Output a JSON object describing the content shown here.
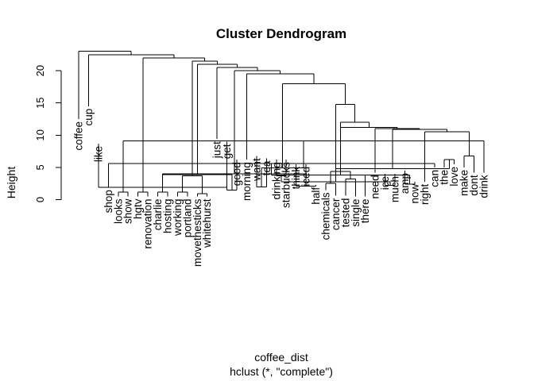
{
  "chart_data": {
    "type": "dendrogram",
    "title": "Cluster Dendrogram",
    "ylabel": "Height",
    "xlabel": "coffee_dist",
    "sub": "hclust (*, \"complete\")",
    "ylim": [
      0,
      20
    ],
    "yticks": [
      0,
      5,
      10,
      15,
      20
    ],
    "leaves": [
      {
        "label": "coffee",
        "h": 12.5
      },
      {
        "label": "cup",
        "h": 14.5
      },
      {
        "label": "like",
        "h": 8.7
      },
      {
        "label": "shop",
        "h": 1.9
      },
      {
        "label": "looks",
        "h": 0.5
      },
      {
        "label": "show",
        "h": 0.5
      },
      {
        "label": "hgtv",
        "h": 0.5
      },
      {
        "label": "renovation",
        "h": 0.5
      },
      {
        "label": "charlie",
        "h": 0.5
      },
      {
        "label": "hosting",
        "h": 0.5
      },
      {
        "label": "working",
        "h": 0.5
      },
      {
        "label": "portland",
        "h": 0.5
      },
      {
        "label": "movethesticks",
        "h": 0.5
      },
      {
        "label": "whitehurst",
        "h": 0.5
      },
      {
        "label": "just",
        "h": 9.4
      },
      {
        "label": "get",
        "h": 9.0
      },
      {
        "label": "good",
        "h": 6.2
      },
      {
        "label": "morning",
        "h": 6.2
      },
      {
        "label": "want",
        "h": 6.8
      },
      {
        "label": "tea",
        "h": 6.4
      },
      {
        "label": "drinking",
        "h": 6.2
      },
      {
        "label": "starbucks",
        "h": 6.2
      },
      {
        "label": "think",
        "h": 5.5
      },
      {
        "label": "iced",
        "h": 5.5
      },
      {
        "label": "half",
        "h": 2.3
      },
      {
        "label": "chemicals",
        "h": 1.5
      },
      {
        "label": "cancer",
        "h": 0.6
      },
      {
        "label": "tested",
        "h": 0.6
      },
      {
        "label": "single",
        "h": 0.5
      },
      {
        "label": "there",
        "h": 0.5
      },
      {
        "label": "need",
        "h": 4.2
      },
      {
        "label": "ice",
        "h": 4.0
      },
      {
        "label": "much",
        "h": 4.0
      },
      {
        "label": "amp",
        "h": 4.5
      },
      {
        "label": "now",
        "h": 2.8
      },
      {
        "label": "right",
        "h": 2.8
      },
      {
        "label": "can",
        "h": 5.0
      },
      {
        "label": "the",
        "h": 5.0
      },
      {
        "label": "love",
        "h": 5.5
      },
      {
        "label": "make",
        "h": 5.0
      },
      {
        "label": "dont",
        "h": 4.2
      },
      {
        "label": "drink",
        "h": 4.2
      }
    ],
    "merges": [
      {
        "l": 4,
        "r": 5,
        "h": 1.2
      },
      {
        "l": 6,
        "r": 7,
        "h": 1.2
      },
      {
        "l": 8,
        "r": 9,
        "h": 1.2
      },
      {
        "l": 10,
        "r": 11,
        "h": 1.2
      },
      {
        "l": 12,
        "r": 13,
        "h": 0.9
      },
      {
        "l": 2,
        "r": 15,
        "h": 1.9
      },
      {
        "l": 15,
        "r": 16,
        "h": 1.5
      },
      {
        "l": 22,
        "r": 24,
        "h": 2.1
      },
      {
        "l": 25,
        "r": 26,
        "h": 2.5
      },
      {
        "l": 27,
        "r": 28,
        "h": 3.2
      },
      {
        "l": 18,
        "r": 19,
        "h": 2.0
      },
      {
        "l": 20,
        "r": 21,
        "h": 3.7
      },
      {
        "l": 23,
        "r": 29,
        "h": 3.8
      },
      {
        "l": 31,
        "r": 32,
        "h": 2.2
      },
      {
        "l": 33,
        "r": 34,
        "h": 2.4
      },
      {
        "l": 3,
        "r": 36,
        "h": 5.6
      },
      {
        "l": 37,
        "r": 38,
        "h": 6.2
      },
      {
        "l": 39,
        "r": 40,
        "h": 6.8
      },
      {
        "l": 41,
        "r": 42,
        "h": 9.1
      },
      {
        "l": 44,
        "r": 48,
        "h": 3.9
      },
      {
        "l": 45,
        "r": 46,
        "h": 3.7
      },
      {
        "l": 47,
        "r": 49,
        "h": 4.0
      },
      {
        "l": 50,
        "r": 51,
        "h": 4.4
      },
      {
        "l": 56,
        "r": 57,
        "h": 3.8
      },
      {
        "l": 53,
        "r": 55,
        "h": 2.8
      },
      {
        "l": 54,
        "r": 58,
        "h": 4.8
      },
      {
        "l": 52,
        "r": 60,
        "h": 4.9
      }
    ]
  }
}
